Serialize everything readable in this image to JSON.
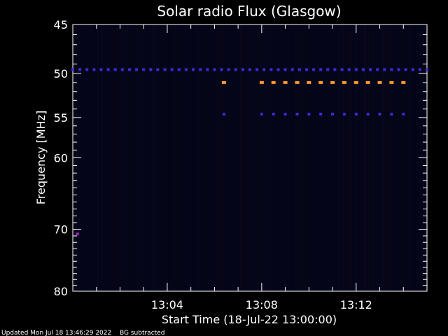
{
  "chart_data": {
    "type": "heatmap",
    "title": "Solar radio Flux (Glasgow)",
    "xlabel": "Start Time (18-Jul-22 13:00:00)",
    "ylabel": "Frequency [MHz]",
    "x_unit": "minutes after 13:00:00",
    "xlim": [
      0,
      15
    ],
    "ylim": [
      80,
      45
    ],
    "y_scale": "log",
    "x_tick_labels": [
      {
        "value": 4,
        "label": "13:04"
      },
      {
        "value": 8,
        "label": "13:08"
      },
      {
        "value": 12,
        "label": "13:12"
      }
    ],
    "y_tick_labels": [
      {
        "value": 45,
        "label": "45"
      },
      {
        "value": 50,
        "label": "50"
      },
      {
        "value": 55,
        "label": "55"
      },
      {
        "value": 60,
        "label": "60"
      },
      {
        "value": 70,
        "label": "70"
      },
      {
        "value": 80,
        "label": "80"
      }
    ],
    "y_minor_ticks": [
      46,
      47,
      48,
      49,
      51,
      52,
      53,
      54,
      56,
      57,
      58,
      59,
      61,
      62,
      63,
      64,
      65,
      66,
      67,
      68,
      69,
      71,
      72,
      73,
      74,
      75,
      76,
      77,
      78,
      79
    ],
    "x_minor_ticks": [
      1,
      2,
      3,
      5,
      6,
      7,
      9,
      10,
      11,
      13,
      14
    ],
    "background_color": "#05051a",
    "colors": {
      "blue": "#3a2bd6",
      "orange": "#ff9a2e",
      "magenta": "#a020c0"
    },
    "features": [
      {
        "freq": 49.6,
        "t_start": 0.0,
        "t_end": 15.0,
        "step": 0.3,
        "color": "blue"
      },
      {
        "freq": 51.0,
        "t_start": 6.4,
        "t_end": 6.6,
        "step": 0.3,
        "color": "orange"
      },
      {
        "freq": 51.0,
        "t_start": 8.0,
        "t_end": 14.1,
        "step": 0.5,
        "color": "orange"
      },
      {
        "freq": 54.6,
        "t_start": 6.4,
        "t_end": 6.6,
        "step": 0.3,
        "color": "blue"
      },
      {
        "freq": 54.6,
        "t_start": 8.0,
        "t_end": 14.1,
        "step": 0.5,
        "color": "blue"
      },
      {
        "freq": 70.7,
        "t_start": 0.2,
        "t_end": 0.25,
        "step": 0.3,
        "color": "magenta"
      }
    ]
  },
  "footer": {
    "updated": "Updated Mon Jul 18 13:46:29 2022",
    "bg_note": "BG subtracted"
  }
}
